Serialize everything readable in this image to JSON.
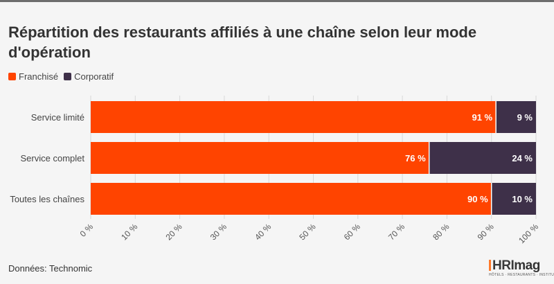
{
  "title": "Répartition des restaurants affiliés à une chaîne selon leur mode d'opération",
  "legend": [
    {
      "label": "Franchisé",
      "color": "#ff4400"
    },
    {
      "label": "Corporatif",
      "color": "#3e3049"
    }
  ],
  "source": "Données: Technomic",
  "logo": {
    "text": "HRImag",
    "main": "HRI",
    "suffix": "mag",
    "tagline": "HÔTELS · RESTAURANTS · INSTITUTIONS"
  },
  "chart_data": {
    "type": "bar",
    "orientation": "horizontal",
    "stacked": true,
    "categories": [
      "Service limité",
      "Service complet",
      "Toutes les chaînes"
    ],
    "series": [
      {
        "name": "Franchisé",
        "values": [
          91,
          76,
          90
        ],
        "labels": [
          "91 %",
          "76 %",
          "90 %"
        ],
        "color": "#ff4400"
      },
      {
        "name": "Corporatif",
        "values": [
          9,
          24,
          10
        ],
        "labels": [
          "9 %",
          "24 %",
          "10 %"
        ],
        "color": "#3e3049"
      }
    ],
    "xlim": [
      0,
      100
    ],
    "x_ticks": [
      0,
      10,
      20,
      30,
      40,
      50,
      60,
      70,
      80,
      90,
      100
    ],
    "x_tick_labels": [
      "0 %",
      "10 %",
      "20 %",
      "30 %",
      "40 %",
      "50 %",
      "60 %",
      "70 %",
      "80 %",
      "90 %",
      "100 %"
    ],
    "grid": true,
    "legend_position": "top-left",
    "title": "Répartition des restaurants affiliés à une chaîne selon leur mode d'opération",
    "source": "Données: Technomic"
  }
}
